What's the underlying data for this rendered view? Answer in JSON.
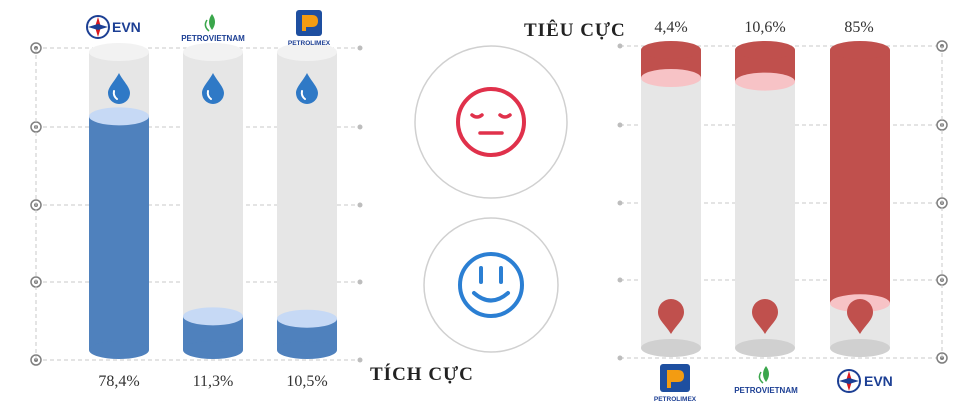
{
  "chart_data": [
    {
      "type": "bar",
      "id": "positive",
      "title": "TÍCH CỰC",
      "categories": [
        "EVN",
        "PETROVIETNAM",
        "PETROLIMEX"
      ],
      "values": [
        78.4,
        11.3,
        10.5
      ],
      "value_labels": [
        "78,4%",
        "11,3%",
        "10,5%"
      ],
      "ylim": [
        0,
        100
      ],
      "color": "#4f81bd"
    },
    {
      "type": "bar",
      "id": "negative",
      "title": "TIÊU CỰC",
      "categories": [
        "PETROLIMEX",
        "PETROVIETNAM",
        "EVN"
      ],
      "values": [
        4.4,
        10.6,
        85
      ],
      "value_labels": [
        "4,4%",
        "10,6%",
        "85%"
      ],
      "ylim": [
        0,
        100
      ],
      "color": "#c0504d"
    }
  ],
  "icons": {
    "positive_bar_icon": "water-drop-icon",
    "negative_bar_icon": "map-pin-icon",
    "negative_face": "sad-face-icon",
    "positive_face": "smile-face-icon"
  },
  "logos": {
    "evn": "EVN",
    "petrovietnam": "PETROVIETNAM",
    "petrolimex": "PETROLIMEX"
  },
  "colors": {
    "positive": "#4f81bd",
    "positive_top": "#c6d9f5",
    "negative": "#c0504d",
    "negative_top": "#f7c3c6",
    "tube": "#e6e6e6",
    "sad": "#e0314b",
    "smile": "#2b7fd3"
  }
}
